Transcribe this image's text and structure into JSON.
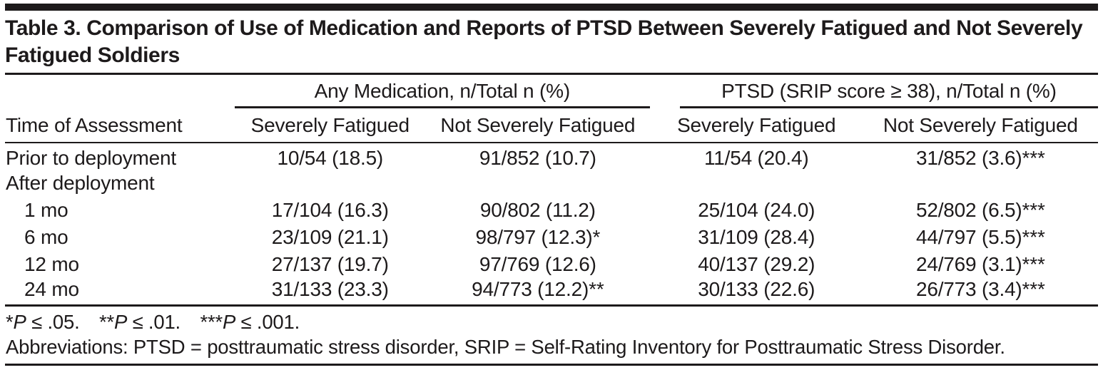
{
  "colors": {
    "text": "#1d1a1b",
    "rule": "#1d1a1b",
    "background": "#ffffff"
  },
  "table": {
    "title": "Table 3. Comparison of Use of Medication and Reports of PTSD Between Severely Fatigued and Not Severely Fatigued Soldiers",
    "stub_header": "Time of Assessment",
    "column_groups": [
      {
        "label": "Any Medication, n/Total n (%)",
        "sub_headers": [
          "Severely Fatigued",
          "Not Severely Fatigued"
        ]
      },
      {
        "label": "PTSD (SRIP score ≥ 38), n/Total n (%)",
        "sub_headers": [
          "Severely Fatigued",
          "Not Severely Fatigued"
        ]
      }
    ],
    "rows": [
      {
        "label": "Prior to deployment",
        "values": [
          "10/54 (18.5)",
          "91/852 (10.7)",
          "11/54 (20.4)",
          "31/852 (3.6)***"
        ]
      },
      {
        "label": "After deployment",
        "values": [
          "",
          "",
          "",
          ""
        ]
      },
      {
        "label": "1 mo",
        "values": [
          "17/104 (16.3)",
          "90/802 (11.2)",
          "25/104 (24.0)",
          "52/802 (6.5)***"
        ]
      },
      {
        "label": "6 mo",
        "values": [
          "23/109 (21.1)",
          "98/797 (12.3)*",
          "31/109 (28.4)",
          "44/797 (5.5)***"
        ]
      },
      {
        "label": "12 mo",
        "values": [
          "27/137 (19.7)",
          "97/769 (12.6)",
          "40/137 (29.2)",
          "24/769 (3.1)***"
        ]
      },
      {
        "label": "24 mo",
        "values": [
          "31/133 (23.3)",
          "94/773 (12.2)**",
          "30/133 (22.6)",
          "26/773 (3.4)***"
        ]
      }
    ]
  },
  "footnotes": {
    "significance": [
      {
        "stars": "*",
        "p": "P",
        "rest": " ≤ .05."
      },
      {
        "stars": "**",
        "p": "P",
        "rest": " ≤ .01."
      },
      {
        "stars": "***",
        "p": "P",
        "rest": " ≤ .001."
      }
    ],
    "abbreviations": "Abbreviations: PTSD = posttraumatic stress disorder, SRIP = Self-Rating Inventory for Posttraumatic Stress Disorder."
  }
}
